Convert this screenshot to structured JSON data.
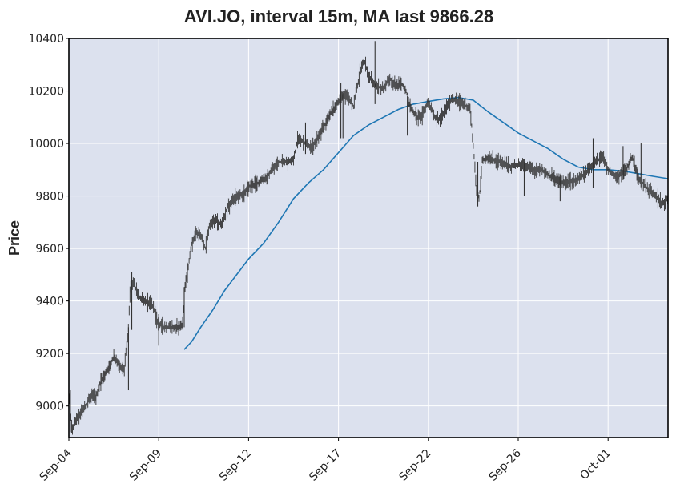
{
  "chart_data": {
    "type": "candlestick",
    "title": "AVI.JO, interval 15m, MA last 9866.28",
    "xlabel": "",
    "ylabel": "Price",
    "ylim": [
      8880,
      10400
    ],
    "grid": true,
    "legend": "none",
    "colors": {
      "background": "#dce1ee",
      "grid": "#ffffff",
      "candles": "#333333",
      "ma_line": "#1f77b4",
      "frame": "#000000"
    },
    "x_ticks": [
      {
        "label": "Sep-04",
        "index": 0
      },
      {
        "label": "Sep-09",
        "index": 3
      },
      {
        "label": "Sep-12",
        "index": 6
      },
      {
        "label": "Sep-17",
        "index": 9
      },
      {
        "label": "Sep-22",
        "index": 12
      },
      {
        "label": "Sep-26",
        "index": 15
      },
      {
        "label": "Oct-01",
        "index": 18
      }
    ],
    "y_ticks": [
      9000,
      9200,
      9400,
      9600,
      9800,
      10000,
      10200,
      10400
    ],
    "x_range": [
      0,
      20
    ],
    "price_path": [
      [
        0.0,
        9050
      ],
      [
        0.1,
        8910
      ],
      [
        0.25,
        8950
      ],
      [
        0.5,
        8990
      ],
      [
        0.75,
        9040
      ],
      [
        0.9,
        9030
      ],
      [
        1.05,
        9090
      ],
      [
        1.3,
        9140
      ],
      [
        1.5,
        9190
      ],
      [
        1.7,
        9150
      ],
      [
        1.85,
        9140
      ],
      [
        1.98,
        9290
      ],
      [
        2.05,
        9440
      ],
      [
        2.15,
        9480
      ],
      [
        2.3,
        9420
      ],
      [
        2.5,
        9400
      ],
      [
        2.75,
        9390
      ],
      [
        2.85,
        9370
      ],
      [
        2.95,
        9320
      ],
      [
        3.2,
        9300
      ],
      [
        3.6,
        9300
      ],
      [
        3.8,
        9310
      ],
      [
        3.85,
        9440
      ],
      [
        3.95,
        9500
      ],
      [
        4.1,
        9620
      ],
      [
        4.25,
        9660
      ],
      [
        4.45,
        9640
      ],
      [
        4.55,
        9600
      ],
      [
        4.7,
        9690
      ],
      [
        4.9,
        9710
      ],
      [
        5.1,
        9690
      ],
      [
        5.3,
        9760
      ],
      [
        5.6,
        9800
      ],
      [
        5.85,
        9810
      ],
      [
        6.05,
        9840
      ],
      [
        6.3,
        9850
      ],
      [
        6.6,
        9870
      ],
      [
        6.8,
        9900
      ],
      [
        7.0,
        9930
      ],
      [
        7.3,
        9930
      ],
      [
        7.5,
        9940
      ],
      [
        7.65,
        10020
      ],
      [
        7.9,
        10000
      ],
      [
        8.1,
        9980
      ],
      [
        8.3,
        10020
      ],
      [
        8.5,
        10060
      ],
      [
        8.7,
        10110
      ],
      [
        8.9,
        10140
      ],
      [
        9.1,
        10180
      ],
      [
        9.3,
        10180
      ],
      [
        9.5,
        10140
      ],
      [
        9.7,
        10260
      ],
      [
        9.85,
        10320
      ],
      [
        10.0,
        10260
      ],
      [
        10.2,
        10220
      ],
      [
        10.5,
        10210
      ],
      [
        10.7,
        10250
      ],
      [
        10.9,
        10220
      ],
      [
        11.1,
        10230
      ],
      [
        11.25,
        10200
      ],
      [
        11.4,
        10140
      ],
      [
        11.6,
        10100
      ],
      [
        11.8,
        10110
      ],
      [
        12.0,
        10160
      ],
      [
        12.2,
        10100
      ],
      [
        12.4,
        10090
      ],
      [
        12.6,
        10140
      ],
      [
        12.8,
        10170
      ],
      [
        13.0,
        10160
      ],
      [
        13.2,
        10150
      ],
      [
        13.4,
        10130
      ],
      [
        13.5,
        9990
      ],
      [
        13.6,
        9830
      ],
      [
        13.7,
        9790
      ],
      [
        13.8,
        9940
      ],
      [
        14.1,
        9940
      ],
      [
        14.4,
        9930
      ],
      [
        14.7,
        9910
      ],
      [
        15.0,
        9920
      ],
      [
        15.3,
        9910
      ],
      [
        15.5,
        9900
      ],
      [
        15.8,
        9900
      ],
      [
        16.0,
        9880
      ],
      [
        16.3,
        9860
      ],
      [
        16.6,
        9850
      ],
      [
        16.9,
        9860
      ],
      [
        17.2,
        9880
      ],
      [
        17.5,
        9920
      ],
      [
        17.8,
        9950
      ],
      [
        18.0,
        9900
      ],
      [
        18.3,
        9870
      ],
      [
        18.6,
        9900
      ],
      [
        18.8,
        9950
      ],
      [
        19.0,
        9870
      ],
      [
        19.3,
        9830
      ],
      [
        19.6,
        9800
      ],
      [
        19.8,
        9770
      ],
      [
        20.0,
        9790
      ]
    ],
    "spikes": [
      {
        "x": 0.05,
        "low": 8900,
        "high": 9060
      },
      {
        "x": 1.99,
        "low": 9060,
        "high": 9300
      },
      {
        "x": 2.1,
        "low": 9290,
        "high": 9510
      },
      {
        "x": 3.0,
        "low": 9230,
        "high": 9350
      },
      {
        "x": 3.85,
        "low": 9300,
        "high": 9450
      },
      {
        "x": 7.9,
        "low": 9960,
        "high": 10080
      },
      {
        "x": 9.08,
        "low": 10020,
        "high": 10230
      },
      {
        "x": 9.15,
        "low": 10020,
        "high": 10200
      },
      {
        "x": 10.22,
        "low": 10150,
        "high": 10390
      },
      {
        "x": 11.3,
        "low": 10030,
        "high": 10180
      },
      {
        "x": 13.65,
        "low": 9760,
        "high": 9930
      },
      {
        "x": 15.2,
        "low": 9800,
        "high": 9930
      },
      {
        "x": 16.4,
        "low": 9780,
        "high": 9880
      },
      {
        "x": 17.5,
        "low": 9830,
        "high": 10020
      },
      {
        "x": 18.5,
        "low": 9860,
        "high": 9990
      },
      {
        "x": 19.1,
        "low": 9880,
        "high": 10000
      }
    ],
    "ma_series": {
      "name": "MA",
      "last_value": 9866.28,
      "points": [
        [
          3.85,
          9215
        ],
        [
          4.1,
          9245
        ],
        [
          4.4,
          9300
        ],
        [
          4.8,
          9365
        ],
        [
          5.2,
          9440
        ],
        [
          5.6,
          9500
        ],
        [
          6.0,
          9560
        ],
        [
          6.5,
          9620
        ],
        [
          7.0,
          9700
        ],
        [
          7.5,
          9790
        ],
        [
          8.0,
          9850
        ],
        [
          8.5,
          9900
        ],
        [
          9.0,
          9965
        ],
        [
          9.5,
          10030
        ],
        [
          10.0,
          10070
        ],
        [
          10.5,
          10100
        ],
        [
          11.0,
          10130
        ],
        [
          11.5,
          10150
        ],
        [
          12.0,
          10160
        ],
        [
          12.5,
          10170
        ],
        [
          13.0,
          10175
        ],
        [
          13.5,
          10165
        ],
        [
          14.0,
          10120
        ],
        [
          14.5,
          10080
        ],
        [
          15.0,
          10040
        ],
        [
          15.5,
          10010
        ],
        [
          16.0,
          9980
        ],
        [
          16.5,
          9940
        ],
        [
          17.0,
          9910
        ],
        [
          17.5,
          9900
        ],
        [
          18.0,
          9900
        ],
        [
          18.5,
          9895
        ],
        [
          19.0,
          9885
        ],
        [
          19.5,
          9875
        ],
        [
          20.0,
          9866
        ]
      ]
    }
  }
}
